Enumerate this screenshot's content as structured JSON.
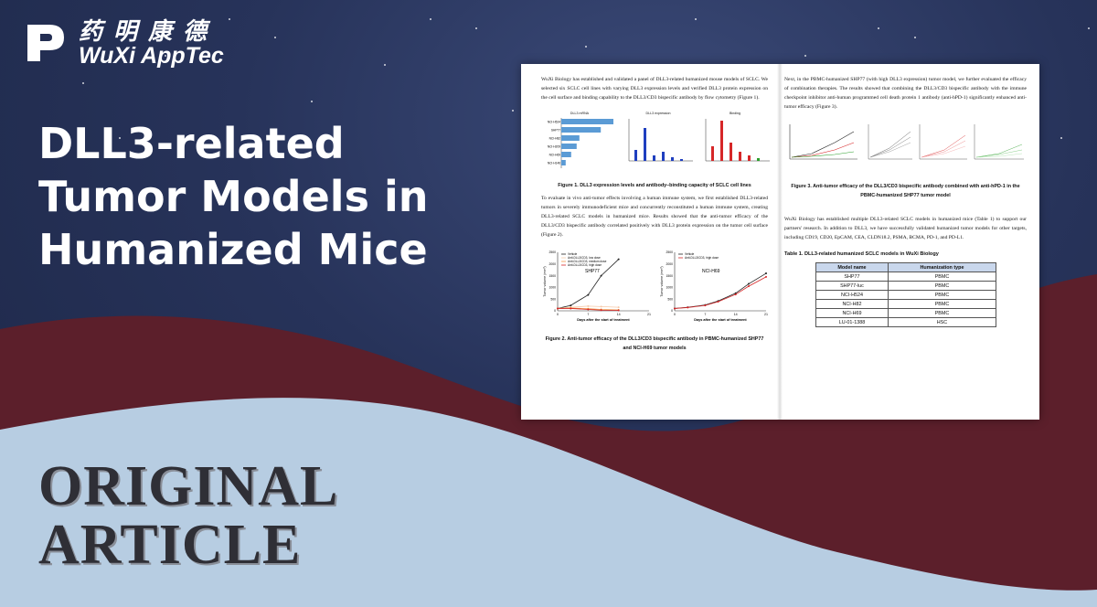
{
  "brand": {
    "name_cn": "药明康德",
    "name_en": "WuXi AppTec"
  },
  "headline": {
    "lines": [
      "DLL3-related",
      "Tumor Models in",
      "Humanized Mice"
    ]
  },
  "category": {
    "lines": [
      "ORIGINAL",
      "ARTICLE"
    ]
  },
  "colors": {
    "navy": "#27335a",
    "maroon": "#5c1f2b",
    "light_blue": "#b7cde2",
    "bar_blue": "#5b9bd5"
  },
  "doc": {
    "left_para1": "WuXi Biology has established and validated a panel of DLL3-related humanized mouse models of SCLC. We selected six SCLC cell lines with varying DLL3 expression levels and verified DLL3 protein expression on the cell surface and binding capability to the DLL3/CD3 bispecific antibody by flow cytometry (Figure 1).",
    "fig1_titles": [
      "DLL3 mRNA",
      "DLL3 expression",
      "Binding"
    ],
    "fig1_caption": "Figure 1. DLL3 expression levels and antibody–binding capacity of SCLC cell lines",
    "left_para2": "To evaluate in vivo anti-tumor effects involving a human immune system, we first established DLL3-related tumors in severely immunodeficient mice and concurrently reconstituted a human immune system, creating DLL3-related SCLC models in humanized mice. Results showed that the anti-tumor efficacy of the DLL3/CD3 bispecific antibody correlated positively with DLL3 protein expression on the tumor cell surface (Figure 2).",
    "fig2_caption": "Figure 2. Anti-tumor efficacy of the DLL3/CD3 bispecific antibody in PBMC-humanized SHP77 and NCI-H69 tumor models",
    "right_para1": "Next, in the PBMC-humanized SHP77 (with high DLL3 expression) tumor model, we further evaluated the efficacy of combination therapies. The results showed that combining the DLL3/CD3 bispecific antibody with the immune checkpoint inhibitor anti-human programmed cell death protein 1 antibody (anti-hPD-1) significantly enhanced anti-tumor efficacy (Figure 3).",
    "fig3_caption": "Figure 3. Anti-tumor efficacy of the DLL3/CD3 bispecific antibody combined with anti-hPD-1 in the PBMC-humanized SHP77 tumor model",
    "right_para2": "WuXi Biology has established multiple DLL3-related SCLC models in humanized mice (Table 1) to support our partners' research. In addition to DLL3, we have successfully validated humanized tumor models for other targets, including CD19, CD20, EpCAM, CEA, CLDN18.2, PSMA, BCMA, PD-1, and PD-L1.",
    "table_caption": "Table 1. DLL3-related humanized SCLC models in WuXi Biology",
    "table_headers": [
      "Model name",
      "Humanization type"
    ],
    "table_rows": [
      [
        "SHP77",
        "PBMC"
      ],
      [
        "SHP77-luc",
        "PBMC"
      ],
      [
        "NCI-H524",
        "PBMC"
      ],
      [
        "NCI-H82",
        "PBMC"
      ],
      [
        "NCI-H69",
        "PBMC"
      ],
      [
        "LU-01-1388",
        "HSC"
      ]
    ]
  },
  "chart_data": [
    {
      "type": "bar",
      "title": "DLL3 mRNA",
      "orientation": "horizontal",
      "categories": [
        "NCI-H524",
        "SHP77",
        "NCI-H82",
        "NCI-H209",
        "NCI-H69",
        "NCI-H146"
      ],
      "values": [
        95,
        72,
        33,
        28,
        18,
        8
      ],
      "xlim": [
        0,
        100
      ]
    },
    {
      "type": "line",
      "title": "SHP77",
      "xlabel": "Days after the start of treatment",
      "ylabel": "Tumor volume (mm³)",
      "x": [
        0,
        3,
        7,
        10,
        14
      ],
      "xticks": [
        0,
        7,
        14,
        21
      ],
      "ylim": [
        0,
        2500
      ],
      "yticks": [
        0,
        500,
        1000,
        1500,
        2000,
        2500
      ],
      "series": [
        {
          "name": "Vehicle",
          "color": "#222222",
          "values": [
            100,
            230,
            680,
            1500,
            2200
          ]
        },
        {
          "name": "Anti-DLL3/CD3, low dose",
          "color": "#f5c9a8",
          "values": [
            100,
            150,
            200,
            180,
            150
          ]
        },
        {
          "name": "Anti-DLL3/CD3, medium dose",
          "color": "#f39a4a",
          "values": [
            100,
            120,
            90,
            60,
            40
          ]
        },
        {
          "name": "Anti-DLL3/CD3, high dose",
          "color": "#d62728",
          "values": [
            100,
            100,
            60,
            30,
            20
          ]
        }
      ]
    },
    {
      "type": "line",
      "title": "NCI-H69",
      "xlabel": "Days after the start of treatment",
      "ylabel": "Tumor volume (mm³)",
      "x": [
        0,
        3,
        7,
        10,
        14,
        17,
        21
      ],
      "xticks": [
        0,
        7,
        14,
        21
      ],
      "ylim": [
        0,
        2500
      ],
      "yticks": [
        0,
        500,
        1000,
        1500,
        2000,
        2500
      ],
      "series": [
        {
          "name": "Vehicle",
          "color": "#222222",
          "values": [
            100,
            150,
            250,
            420,
            750,
            1150,
            1600
          ]
        },
        {
          "name": "Anti-DLL3/CD3, high dose",
          "color": "#d62728",
          "values": [
            100,
            140,
            230,
            390,
            700,
            1050,
            1450
          ]
        }
      ]
    }
  ]
}
